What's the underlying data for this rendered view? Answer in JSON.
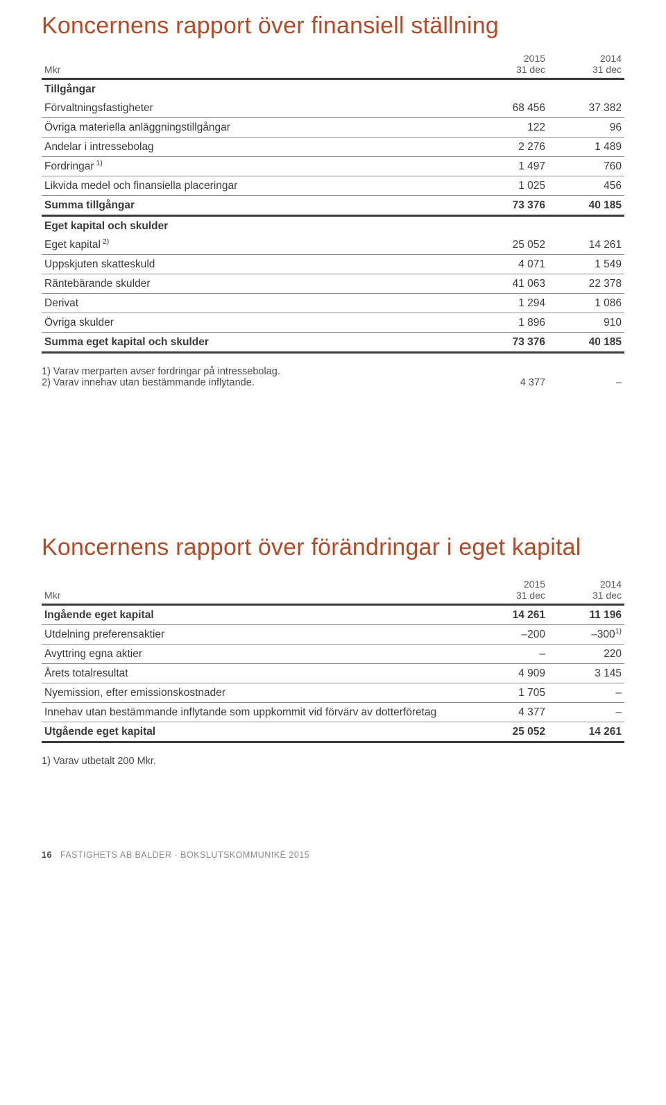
{
  "report1": {
    "title": "Koncernens rapport över finansiell ställning",
    "unit": "Mkr",
    "colheads": [
      {
        "year": "2015",
        "date": "31 dec"
      },
      {
        "year": "2014",
        "date": "31 dec"
      }
    ],
    "section1_head": "Tillgångar",
    "rows1": [
      {
        "label": "Förvaltningsfastigheter",
        "v1": "68 456",
        "v2": "37 382"
      },
      {
        "label": "Övriga materiella anläggningstillgångar",
        "v1": "122",
        "v2": "96"
      },
      {
        "label": "Andelar i intressebolag",
        "v1": "2 276",
        "v2": "1 489"
      },
      {
        "label": "Fordringar",
        "sup": "1)",
        "v1": "1 497",
        "v2": "760"
      },
      {
        "label": "Likvida medel och finansiella placeringar",
        "v1": "1 025",
        "v2": "456"
      }
    ],
    "total1": {
      "label": "Summa tillgångar",
      "v1": "73 376",
      "v2": "40 185"
    },
    "section2_head": "Eget kapital och skulder",
    "rows2": [
      {
        "label": "Eget kapital",
        "sup": "2)",
        "v1": "25 052",
        "v2": "14 261"
      },
      {
        "label": "Uppskjuten skatteskuld",
        "v1": "4 071",
        "v2": "1 549"
      },
      {
        "label": "Räntebärande skulder",
        "v1": "41 063",
        "v2": "22 378"
      },
      {
        "label": "Derivat",
        "v1": "1 294",
        "v2": "1 086"
      },
      {
        "label": "Övriga skulder",
        "v1": "1 896",
        "v2": "910"
      }
    ],
    "total2": {
      "label": "Summa eget kapital och skulder",
      "v1": "73 376",
      "v2": "40 185"
    },
    "note1": "1) Varav merparten avser fordringar på intressebolag.",
    "note2": "2) Varav innehav utan bestämmande inflytande.",
    "note2_v1": "4 377",
    "note2_v2": "–"
  },
  "report2": {
    "title": "Koncernens rapport över förändringar i eget kapital",
    "unit": "Mkr",
    "colheads": [
      {
        "year": "2015",
        "date": "31 dec"
      },
      {
        "year": "2014",
        "date": "31 dec"
      }
    ],
    "rows": [
      {
        "label": "Ingående eget kapital",
        "v1": "14 261",
        "v2": "11 196",
        "bold": true
      },
      {
        "label": "Utdelning preferensaktier",
        "v1": "–200",
        "v2": "–300",
        "sup2": "1)"
      },
      {
        "label": "Avyttring egna aktier",
        "v1": "–",
        "v2": "220"
      },
      {
        "label": "Årets totalresultat",
        "v1": "4 909",
        "v2": "3 145"
      },
      {
        "label": "Nyemission, efter emissionskostnader",
        "v1": "1 705",
        "v2": "–"
      },
      {
        "label": "Innehav utan bestämmande inflytande som uppkommit vid förvärv av dotterföretag",
        "v1": "4 377",
        "v2": "–"
      }
    ],
    "total": {
      "label": "Utgående eget kapital",
      "v1": "25 052",
      "v2": "14 261"
    },
    "note1": "1) Varav utbetalt 200 Mkr."
  },
  "footer": {
    "page": "16",
    "text": "FASTIGHETS AB BALDER · BOKSLUTSKOMMUNIKÉ 2015"
  }
}
